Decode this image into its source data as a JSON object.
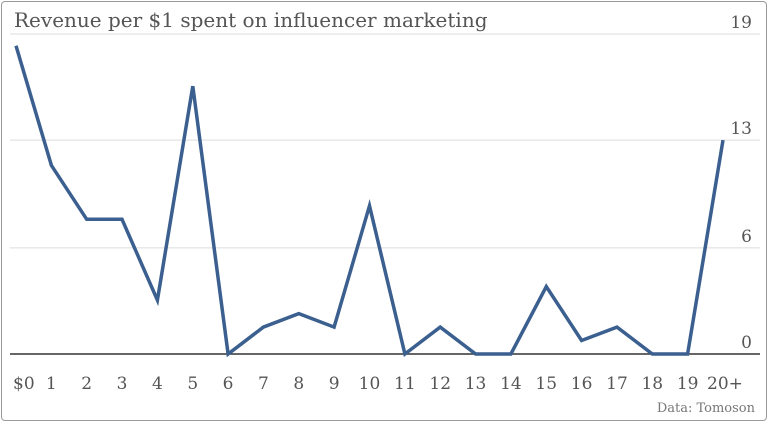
{
  "chart_data": {
    "type": "line",
    "title": "Revenue per $1 spent on influencer marketing",
    "source": "Data: Tomoson",
    "categories": [
      "$0",
      "1",
      "2",
      "3",
      "4",
      "5",
      "6",
      "7",
      "8",
      "9",
      "10",
      "11",
      "12",
      "13",
      "14",
      "15",
      "16",
      "17",
      "18",
      "19",
      "20+"
    ],
    "series": [
      {
        "values": [
          18.3,
          11.2,
          8.0,
          8.0,
          3.2,
          15.9,
          0,
          1.6,
          2.4,
          1.6,
          8.8,
          0,
          1.6,
          0,
          0,
          4.0,
          0.8,
          1.6,
          0,
          0,
          12.7
        ],
        "color": "#3b5f8f"
      }
    ],
    "y_ticks": [
      {
        "value": 0,
        "label": "0"
      },
      {
        "value": 6.3,
        "label": "6"
      },
      {
        "value": 12.7,
        "label": "13"
      },
      {
        "value": 19,
        "label": "19"
      }
    ],
    "ylim": [
      0,
      19
    ],
    "y_axis_side": "right",
    "grid": true,
    "legend": "none"
  }
}
